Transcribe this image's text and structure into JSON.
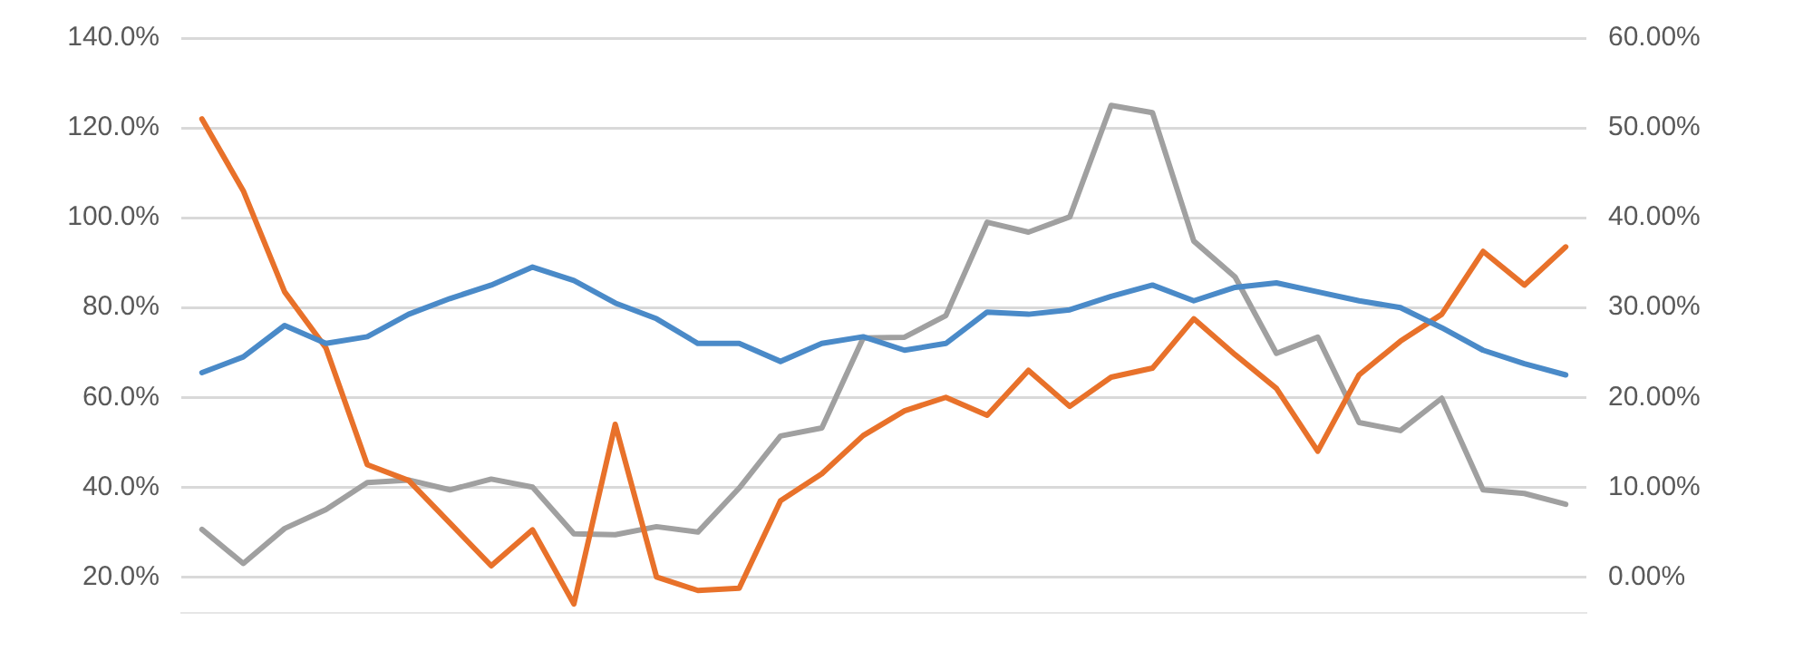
{
  "chart_data": {
    "type": "line",
    "categories": [
      null,
      null,
      null,
      null,
      null,
      null,
      null,
      null,
      null,
      null,
      null,
      null,
      null,
      null,
      null,
      null,
      null,
      null,
      null,
      null,
      null,
      null,
      null,
      null,
      null,
      null,
      null,
      null,
      null,
      null,
      null,
      null,
      null,
      null
    ],
    "series": [
      {
        "color": "#4a8ac8",
        "values": [
          65.5,
          69,
          76,
          72,
          73.5,
          78.5,
          82,
          85,
          89,
          86,
          81,
          77.5,
          72,
          72,
          68,
          72,
          73.5,
          70.5,
          72,
          79,
          78.5,
          79.5,
          82.5,
          85,
          81.5,
          84.5,
          85.5,
          83.5,
          81.5,
          80,
          75.5,
          70.5,
          67.5,
          65
        ]
      },
      {
        "color": "#e8712a",
        "values": [
          122,
          106,
          83.5,
          71,
          45,
          41.5,
          32,
          22.5,
          30.5,
          14,
          54,
          20,
          17,
          17.5,
          37,
          43,
          51.5,
          57,
          60,
          56,
          66,
          58,
          64.5,
          66.5,
          77.5,
          69.5,
          62,
          48,
          65,
          72.5,
          78.5,
          92.5,
          85,
          93.5
        ]
      },
      {
        "color": "#a0a0a0",
        "axis": "y2",
        "values": [
          5.3,
          1.5,
          5.4,
          7.5,
          10.5,
          10.8,
          9.7,
          10.9,
          10,
          4.8,
          4.7,
          5.6,
          5,
          9.9,
          15.7,
          16.6,
          26.6,
          26.7,
          29.1,
          39.5,
          38.4,
          40.1,
          52.5,
          51.7,
          37.4,
          33.4,
          24.9,
          26.7,
          17.2,
          16.3,
          19.9,
          9.7,
          9.3,
          8.1
        ]
      }
    ],
    "ylim": [
      12,
      140
    ],
    "yticks": [
      {
        "value": 20,
        "label": "20.0%"
      },
      {
        "value": 40,
        "label": "40.0%"
      },
      {
        "value": 60,
        "label": "60.0%"
      },
      {
        "value": 80,
        "label": "80.0%"
      },
      {
        "value": 100,
        "label": "100.0%"
      },
      {
        "value": 120,
        "label": "120.0%"
      },
      {
        "value": 140,
        "label": "140.0%"
      }
    ],
    "y2lim": [
      -4,
      60
    ],
    "y2ticks": [
      {
        "value": 0,
        "label": "0.00%"
      },
      {
        "value": 10,
        "label": "10.00%"
      },
      {
        "value": 20,
        "label": "20.00%"
      },
      {
        "value": 30,
        "label": "30.00%"
      },
      {
        "value": 40,
        "label": "40.00%"
      },
      {
        "value": 50,
        "label": "50.00%"
      },
      {
        "value": 60,
        "label": "60.00%"
      }
    ],
    "grid": "y",
    "tick_labels": "y",
    "marker": "none",
    "line_style": "solid"
  }
}
